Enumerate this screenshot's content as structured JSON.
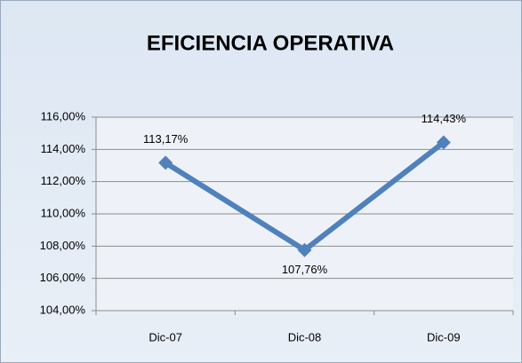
{
  "chart_data": {
    "type": "line",
    "title": "EFICIENCIA OPERATIVA",
    "categories": [
      "Dic-07",
      "Dic-08",
      "Dic-09"
    ],
    "series": [
      {
        "name": "EFICIENCIA OPERATIVA",
        "color": "#4f81bd",
        "values": [
          113.17,
          107.76,
          114.43
        ],
        "value_labels": [
          "113,17%",
          "107,76%",
          "114,43%"
        ]
      }
    ],
    "ylim": [
      104,
      116
    ],
    "yticks": [
      {
        "value": 104,
        "label": "104,00%"
      },
      {
        "value": 106,
        "label": "106,00%"
      },
      {
        "value": 108,
        "label": "108,00%"
      },
      {
        "value": 110,
        "label": "110,00%"
      },
      {
        "value": 112,
        "label": "112,00%"
      },
      {
        "value": 114,
        "label": "114,00%"
      },
      {
        "value": 116,
        "label": "116,00%"
      }
    ],
    "grid": true
  }
}
